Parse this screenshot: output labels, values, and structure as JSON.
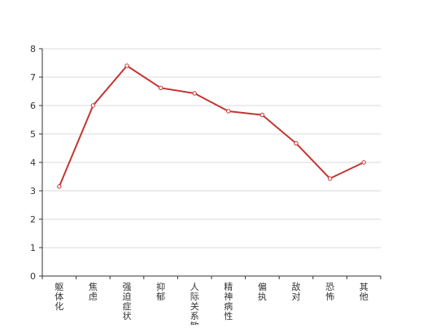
{
  "chart_data": {
    "type": "line",
    "categories": [
      "躯体化",
      "焦虑",
      "强迫症状",
      "抑郁",
      "人际关系敏感",
      "精神病性",
      "偏执",
      "敌对",
      "恐怖",
      "其他"
    ],
    "series": [
      {
        "values": [
          3.15,
          6.0,
          7.4,
          6.62,
          6.43,
          5.8,
          5.67,
          4.67,
          3.43,
          4.0
        ]
      }
    ],
    "y_ticks": [
      0,
      1,
      2,
      3,
      4,
      5,
      6,
      7,
      8
    ],
    "ylim": [
      0,
      8
    ],
    "grid": true,
    "colors": {
      "line": "#c23531",
      "point_fill": "#ffffff",
      "grid": "#d9d9d9",
      "axis": "#333333",
      "text": "#333333"
    },
    "x_label_orientation": "vertical"
  }
}
